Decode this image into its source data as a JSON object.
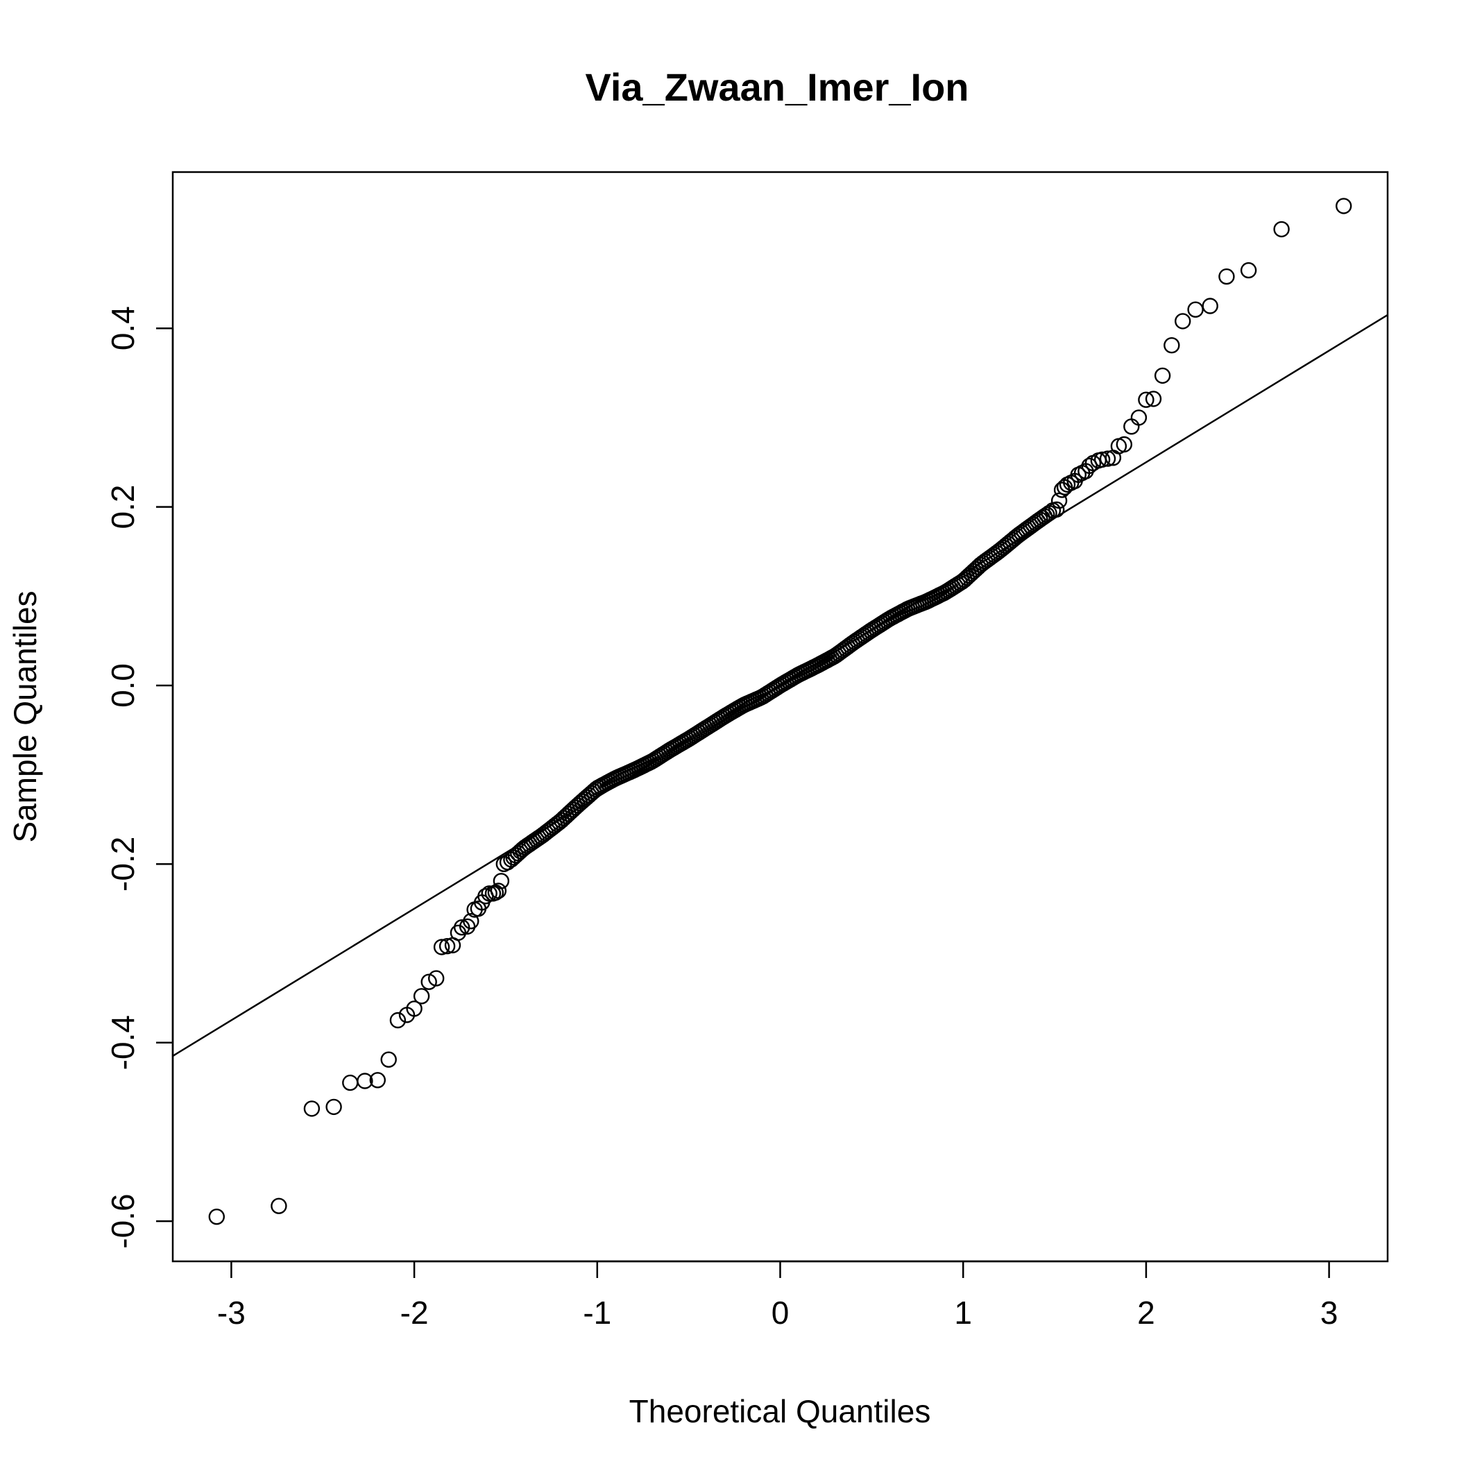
{
  "chart_data": {
    "type": "scatter",
    "title": "Via_Zwaan_Imer_Ion",
    "xlabel": "Theoretical Quantiles",
    "ylabel": "Sample Quantiles",
    "xlim": [
      -3.32,
      3.32
    ],
    "ylim": [
      -0.645,
      0.575
    ],
    "xticks": [
      -3,
      -2,
      -1,
      0,
      1,
      2,
      3
    ],
    "xtick_labels": [
      "-3",
      "-2",
      "-1",
      "0",
      "1",
      "2",
      "3"
    ],
    "yticks": [
      -0.6,
      -0.4,
      -0.2,
      0.0,
      0.2,
      0.4
    ],
    "ytick_labels": [
      "-0.6",
      "-0.4",
      "-0.2",
      "0.0",
      "0.2",
      "0.4"
    ],
    "grid": false,
    "legend": "none",
    "reference_line": {
      "slope": 0.125,
      "intercept": 0.0
    },
    "outer_points": [
      [
        -3.08,
        -0.595
      ],
      [
        -2.74,
        -0.583
      ],
      [
        -2.56,
        -0.474
      ],
      [
        -2.44,
        -0.472
      ],
      [
        -2.35,
        -0.445
      ],
      [
        -2.27,
        -0.443
      ],
      [
        -2.2,
        -0.442
      ],
      [
        -2.14,
        -0.419
      ],
      [
        -2.09,
        -0.375
      ],
      [
        -2.04,
        -0.369
      ],
      [
        -2.0,
        -0.362
      ],
      [
        -1.96,
        -0.348
      ],
      [
        -1.92,
        -0.332
      ],
      [
        -1.88,
        -0.328
      ],
      [
        -1.85,
        -0.293
      ],
      [
        -1.82,
        -0.292
      ],
      [
        -1.79,
        -0.291
      ],
      [
        -1.76,
        -0.277
      ],
      [
        -1.74,
        -0.271
      ],
      [
        -1.71,
        -0.27
      ],
      [
        -1.69,
        -0.264
      ],
      [
        -1.67,
        -0.251
      ],
      [
        -1.65,
        -0.25
      ],
      [
        -1.63,
        -0.243
      ],
      [
        -1.61,
        -0.236
      ],
      [
        -1.59,
        -0.233
      ],
      [
        -1.57,
        -0.233
      ],
      [
        -1.555,
        -0.232
      ],
      [
        -1.54,
        -0.23
      ],
      [
        -1.525,
        -0.219
      ],
      [
        -1.51,
        -0.2
      ],
      [
        -1.49,
        -0.198
      ],
      [
        1.49,
        0.196
      ],
      [
        1.51,
        0.197
      ],
      [
        1.525,
        0.207
      ],
      [
        1.54,
        0.219
      ],
      [
        1.555,
        0.222
      ],
      [
        1.57,
        0.225
      ],
      [
        1.59,
        0.227
      ],
      [
        1.61,
        0.229
      ],
      [
        1.63,
        0.236
      ],
      [
        1.65,
        0.238
      ],
      [
        1.67,
        0.24
      ],
      [
        1.69,
        0.246
      ],
      [
        1.71,
        0.249
      ],
      [
        1.74,
        0.252
      ],
      [
        1.76,
        0.253
      ],
      [
        1.79,
        0.254
      ],
      [
        1.82,
        0.255
      ],
      [
        1.85,
        0.268
      ],
      [
        1.88,
        0.27
      ],
      [
        1.92,
        0.29
      ],
      [
        1.96,
        0.3
      ],
      [
        2.0,
        0.32
      ],
      [
        2.04,
        0.321
      ],
      [
        2.09,
        0.347
      ],
      [
        2.14,
        0.381
      ],
      [
        2.2,
        0.408
      ],
      [
        2.27,
        0.421
      ],
      [
        2.35,
        0.425
      ],
      [
        2.44,
        0.458
      ],
      [
        2.56,
        0.465
      ],
      [
        2.74,
        0.511
      ],
      [
        3.08,
        0.537
      ]
    ],
    "central_band": {
      "x_range": [
        -1.47,
        1.47
      ],
      "knots": [
        [
          -1.47,
          -0.195
        ],
        [
          -1.4,
          -0.182
        ],
        [
          -1.3,
          -0.168
        ],
        [
          -1.2,
          -0.152
        ],
        [
          -1.1,
          -0.133
        ],
        [
          -1.0,
          -0.115
        ],
        [
          -0.9,
          -0.104
        ],
        [
          -0.8,
          -0.095
        ],
        [
          -0.7,
          -0.085
        ],
        [
          -0.6,
          -0.072
        ],
        [
          -0.5,
          -0.06
        ],
        [
          -0.4,
          -0.047
        ],
        [
          -0.3,
          -0.034
        ],
        [
          -0.2,
          -0.022
        ],
        [
          -0.1,
          -0.013
        ],
        [
          0.0,
          0.0
        ],
        [
          0.1,
          0.012
        ],
        [
          0.2,
          0.022
        ],
        [
          0.3,
          0.033
        ],
        [
          0.4,
          0.048
        ],
        [
          0.5,
          0.062
        ],
        [
          0.6,
          0.075
        ],
        [
          0.7,
          0.086
        ],
        [
          0.8,
          0.094
        ],
        [
          0.9,
          0.104
        ],
        [
          1.0,
          0.117
        ],
        [
          1.1,
          0.136
        ],
        [
          1.2,
          0.151
        ],
        [
          1.3,
          0.168
        ],
        [
          1.4,
          0.183
        ],
        [
          1.47,
          0.193
        ]
      ],
      "point_count": 236
    },
    "marker_color": "#000000"
  }
}
